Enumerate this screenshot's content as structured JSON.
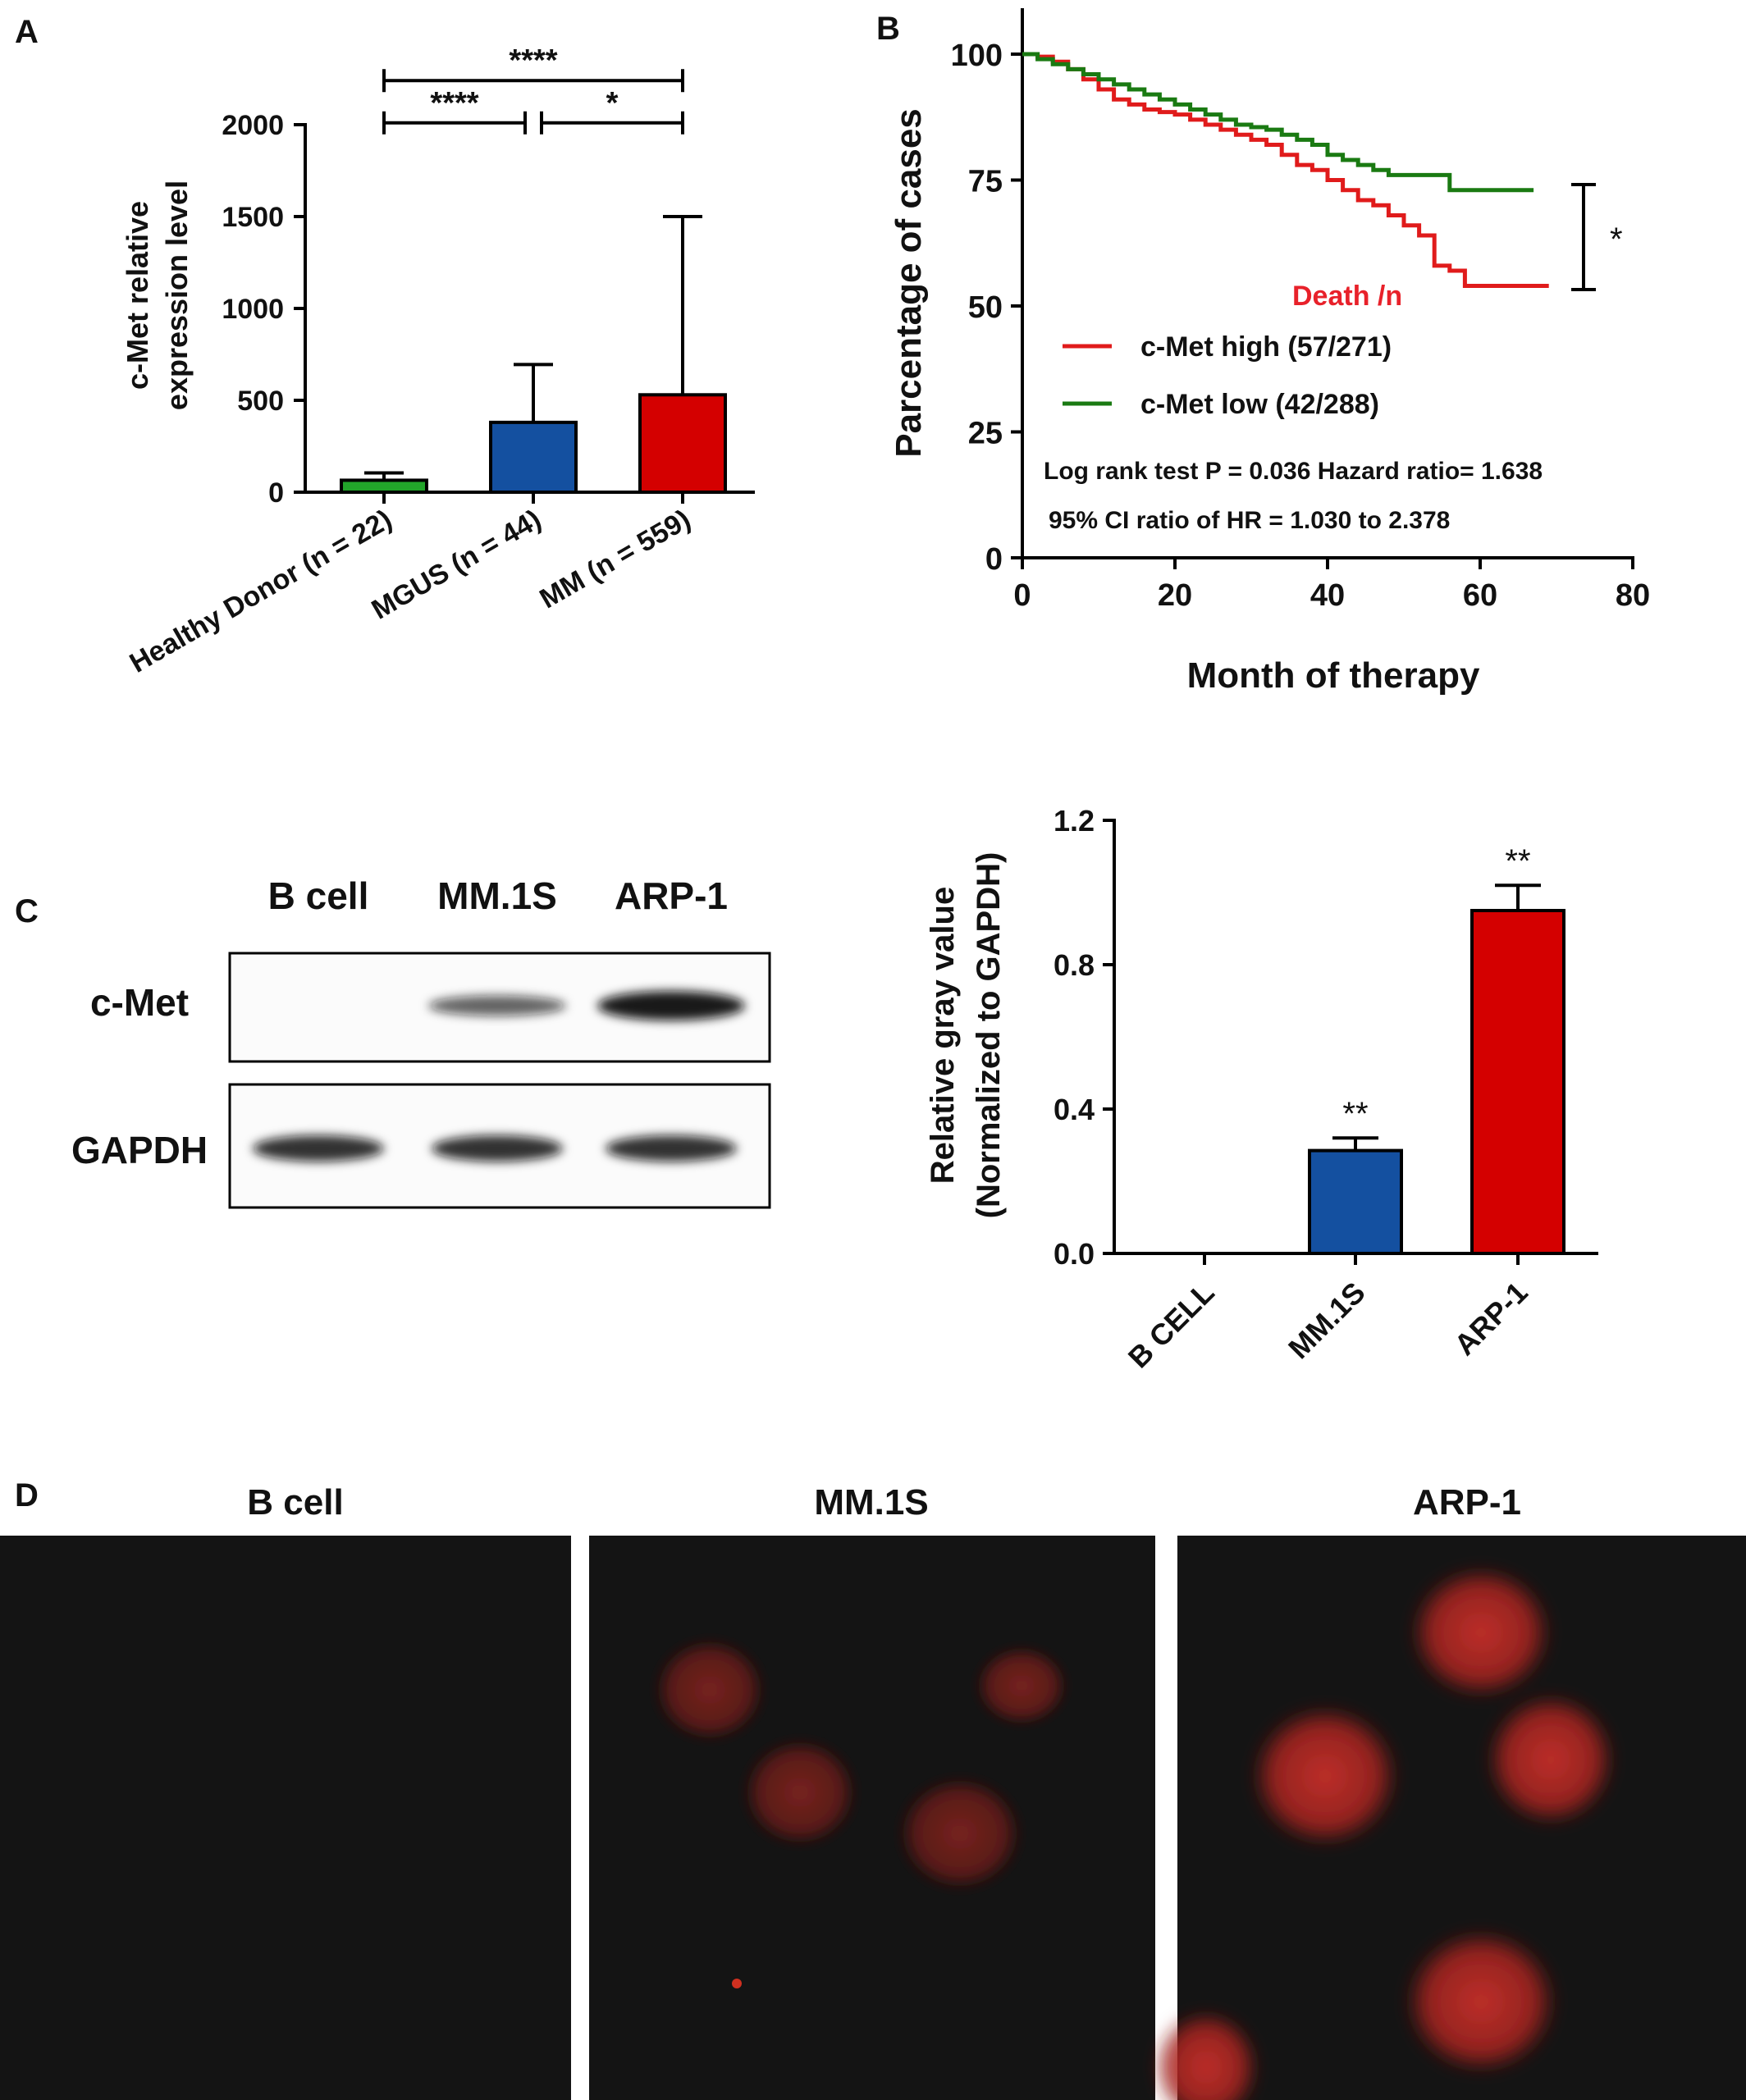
{
  "panel_labels": {
    "a": "A",
    "b": "B",
    "c": "C",
    "d": "D"
  },
  "colors": {
    "green": "#22a52a",
    "blue": "#1450a0",
    "red": "#d40000",
    "km_green": "#1a7a12",
    "km_red": "#e01b1b",
    "death_label": "#e8212a"
  },
  "chart_data": [
    {
      "id": "A",
      "type": "bar",
      "ylabel_line1": "c-Met  relative",
      "ylabel_line2": "expression level",
      "ylim": [
        0,
        2000
      ],
      "yticks": [
        "0",
        "500",
        "1000",
        "1500",
        "2000"
      ],
      "categories": [
        "Healthy Donor (n = 22)",
        "MGUS (n = 44)",
        "MM (n = 559)"
      ],
      "values": [
        65,
        380,
        530
      ],
      "errors": [
        105,
        695,
        1500
      ],
      "bar_colors": [
        "#22a52a",
        "#1450a0",
        "#d40000"
      ],
      "significance": [
        {
          "from": 0,
          "to": 2,
          "label": "****",
          "y": 2240
        },
        {
          "from": 0,
          "to": 1,
          "label": "****",
          "y": 2010
        },
        {
          "from": 1,
          "to": 2,
          "label": "*",
          "y": 2010
        }
      ]
    },
    {
      "id": "B",
      "type": "line",
      "ylabel": "Parcentage of cases",
      "xlabel": "Month of therapy",
      "xlim": [
        0,
        80
      ],
      "ylim": [
        0,
        100
      ],
      "xticks": [
        "0",
        "20",
        "40",
        "60",
        "80"
      ],
      "yticks": [
        "0",
        "25",
        "50",
        "75",
        "100"
      ],
      "death_label": "Death /n",
      "sig_label": "*",
      "stats_line1": "Log rank test P = 0.036  Hazard ratio= 1.638",
      "stats_line2": "95% CI ratio of HR = 1.030 to 2.378",
      "series": [
        {
          "name": "c-Met high (57/271)",
          "color": "#e01b1b",
          "x": [
            0,
            2,
            4,
            6,
            8,
            10,
            12,
            14,
            16,
            18,
            20,
            22,
            24,
            26,
            28,
            30,
            32,
            34,
            36,
            38,
            40,
            42,
            44,
            46,
            48,
            50,
            52,
            54,
            56,
            58,
            62,
            66,
            69
          ],
          "y": [
            100,
            99.5,
            98.5,
            97,
            95,
            93,
            91,
            90,
            89,
            88.5,
            88,
            87,
            86,
            85,
            84,
            83,
            82,
            80,
            78,
            77,
            75,
            73,
            71,
            70,
            68,
            66,
            64,
            58,
            57,
            54,
            54,
            54,
            54
          ]
        },
        {
          "name": "c-Met low (42/288)",
          "color": "#1a7a12",
          "x": [
            0,
            2,
            4,
            6,
            8,
            10,
            12,
            14,
            16,
            18,
            20,
            22,
            24,
            26,
            28,
            30,
            32,
            34,
            36,
            38,
            40,
            42,
            44,
            46,
            48,
            50,
            52,
            54,
            56,
            58,
            62,
            67
          ],
          "y": [
            100,
            99,
            98,
            97,
            96,
            95,
            94,
            93,
            92,
            91,
            90,
            89,
            88,
            87,
            86,
            85.5,
            85,
            84,
            83,
            82,
            80,
            79,
            78,
            77,
            76,
            76,
            76,
            76,
            73,
            73,
            73,
            73
          ]
        }
      ]
    },
    {
      "id": "C",
      "type": "bar",
      "ylabel_line1": "Relative  gray value",
      "ylabel_line2": "(Normalized to GAPDH)",
      "ylim": [
        0,
        1.2
      ],
      "yticks": [
        "0.0",
        "0.4",
        "0.8",
        "1.2"
      ],
      "categories": [
        "B CELL",
        "MM.1S",
        "ARP-1"
      ],
      "values": [
        0,
        0.285,
        0.95
      ],
      "errors": [
        0,
        0.32,
        1.02
      ],
      "bar_colors": [
        "#ffffff",
        "#1450a0",
        "#d40000"
      ],
      "sig_labels": [
        "",
        "**",
        "**"
      ]
    }
  ],
  "blot": {
    "lanes": [
      "B cell",
      "MM.1S",
      "ARP-1"
    ],
    "rows": [
      "c-Met",
      "GAPDH"
    ],
    "cmet_intensity": [
      0,
      0.5,
      1
    ],
    "gapdh_intensity": [
      1,
      1,
      1
    ]
  },
  "fluorescence": {
    "titles": [
      "B cell",
      "MM.1S",
      "ARP-1"
    ]
  }
}
